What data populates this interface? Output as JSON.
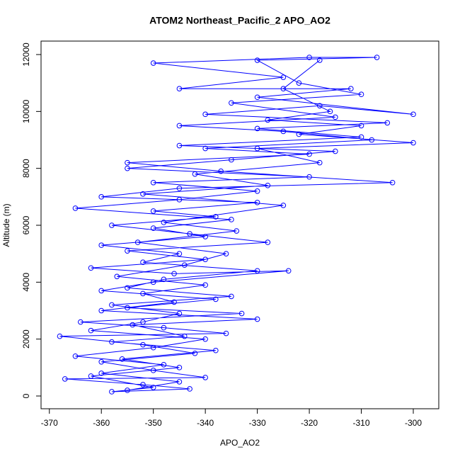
{
  "chart_data": {
    "type": "line",
    "markers": true,
    "title": "ATOM2 Northeast_Pacific_2 APO_AO2",
    "x_label": "APO_AO2",
    "y_label": "Altitude (m)",
    "x": [
      -355,
      -345,
      -360,
      -348,
      -365,
      -350,
      -340,
      -362,
      -352,
      -345,
      -358,
      -335,
      -355,
      -348,
      -330,
      -352,
      -345,
      -360,
      -340,
      -350,
      -335,
      -365,
      -345,
      -330,
      -350,
      -320,
      -355,
      -335,
      -315,
      -345,
      -310,
      -330,
      -305,
      -340,
      -318,
      -300,
      -330,
      -312,
      -345,
      -325,
      -350,
      -320,
      -307,
      -330,
      -322,
      -310,
      -335,
      -315,
      -345,
      -325,
      -308,
      -340,
      -320,
      -355,
      -337,
      -304,
      -345,
      -360,
      -330,
      -350,
      -338,
      -358,
      -343,
      -328,
      -355,
      -340,
      -362,
      -346,
      -324,
      -350,
      -360,
      -338,
      -355,
      -333,
      -364,
      -348,
      -336,
      -368,
      -352,
      -342,
      -360,
      -350,
      -340,
      -367,
      -352,
      -343,
      -358,
      -350,
      -362,
      -345,
      -356,
      -338,
      -358,
      -344,
      -354,
      -330,
      -360,
      -346,
      -352,
      -340,
      -357,
      -344,
      -336,
      -353,
      -334,
      -348,
      -325,
      -352,
      -328,
      -342,
      -318,
      -330,
      -300,
      -322,
      -310,
      -328,
      -316,
      -325,
      -318
    ],
    "series": [
      {
        "color": "#0000ff",
        "values": [
          200,
          500,
          800,
          1100,
          1400,
          1700,
          2000,
          2300,
          2600,
          2900,
          3200,
          3500,
          3800,
          4100,
          4400,
          4700,
          5000,
          5300,
          5600,
          5900,
          6200,
          6600,
          6900,
          7200,
          7500,
          7700,
          8000,
          8300,
          8600,
          8800,
          9100,
          9400,
          9600,
          9900,
          10200,
          9900,
          10500,
          10800,
          10800,
          11200,
          11700,
          11900,
          11900,
          11800,
          11000,
          10600,
          10300,
          9800,
          9500,
          9300,
          9000,
          8700,
          8500,
          8200,
          7900,
          7500,
          7300,
          7000,
          6800,
          6500,
          6300,
          6000,
          5700,
          5400,
          5100,
          4800,
          4500,
          4300,
          4400,
          4000,
          3700,
          3400,
          3100,
          2900,
          2600,
          2400,
          2200,
          2100,
          1800,
          1500,
          1200,
          900,
          650,
          600,
          400,
          250,
          150,
          300,
          700,
          1000,
          1300,
          1600,
          1900,
          2100,
          2500,
          2700,
          3000,
          3300,
          3600,
          3900,
          4200,
          4600,
          5000,
          5400,
          5800,
          6100,
          6700,
          7100,
          7400,
          7800,
          8200,
          8700,
          8900,
          9200,
          9500,
          9700,
          10000,
          10800,
          11800
        ]
      }
    ],
    "xlim": [
      -371.6,
      -295.1
    ],
    "ylim": [
      -448,
      12473
    ],
    "xticks": [
      -370,
      -360,
      -350,
      -340,
      -330,
      -320,
      -310,
      -300
    ],
    "yticks": [
      0,
      2000,
      4000,
      6000,
      8000,
      10000,
      12000
    ]
  }
}
